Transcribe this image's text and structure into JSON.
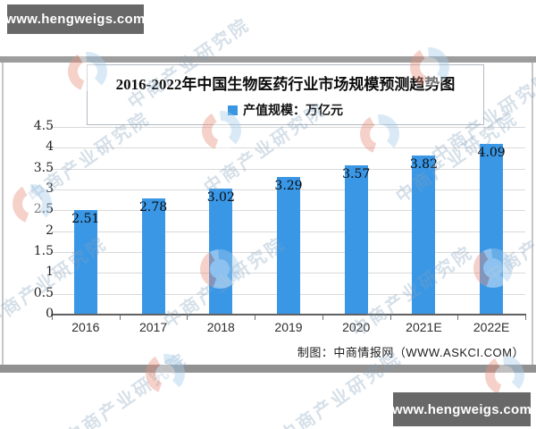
{
  "watermark": {
    "badge_text": "www.hengweigs.com",
    "brand_text": "中商产业研究院",
    "badge_bg": "#686868"
  },
  "chart_data": {
    "type": "bar",
    "title": "2016-2022年中国生物医药行业市场规模预测趋势图",
    "legend": "产值规模：万亿元",
    "legend_position": "top",
    "categories": [
      "2016",
      "2017",
      "2018",
      "2019",
      "2020",
      "2021E",
      "2022E"
    ],
    "values": [
      2.51,
      2.78,
      3.02,
      3.29,
      3.57,
      3.82,
      4.09
    ],
    "value_labels": [
      "2.51",
      "2.78",
      "3.02",
      "3.29",
      "3.57",
      "3.82",
      "4.09"
    ],
    "unit": "万亿元",
    "xlabel": "",
    "ylabel": "",
    "ylim": [
      0,
      4.5
    ],
    "ytick_step": 0.5,
    "yticks": [
      "0",
      "0.5",
      "1",
      "1.5",
      "2",
      "2.5",
      "3",
      "3.5",
      "4",
      "4.5"
    ],
    "grid": true,
    "bar_color": "#3a97e6",
    "attribution": "制图：中商情报网（WWW.ASKCI.COM）"
  }
}
